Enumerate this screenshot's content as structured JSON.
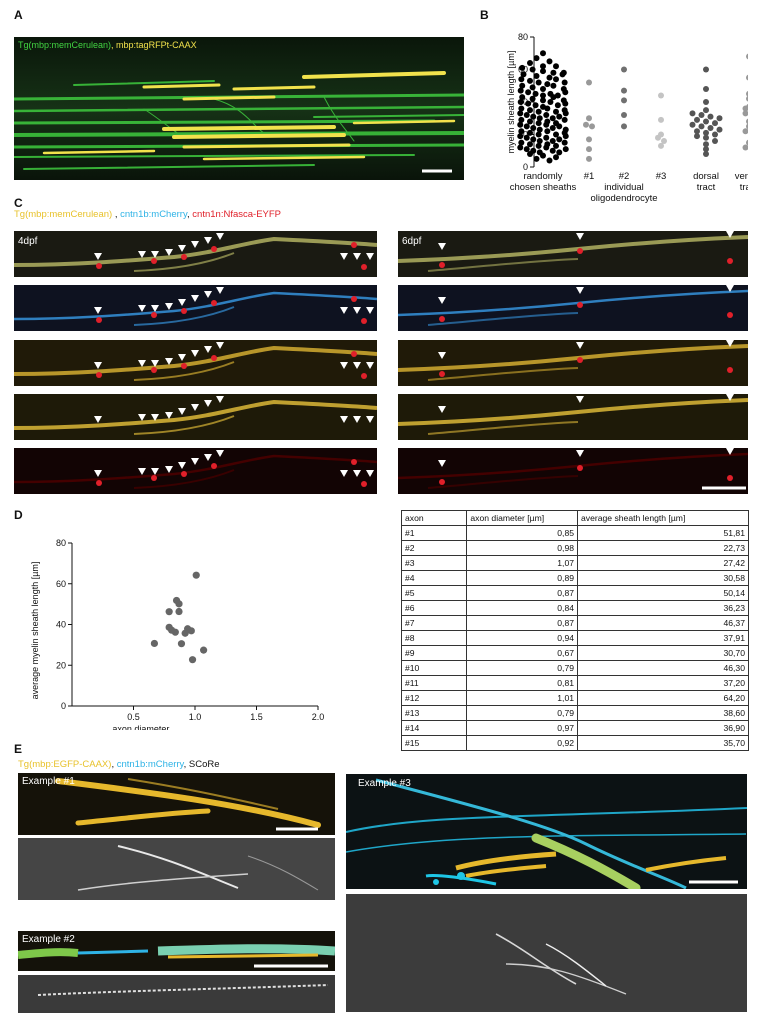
{
  "panel_labels": {
    "a": "A",
    "b": "B",
    "c": "C",
    "d": "D",
    "e": "E"
  },
  "panelA": {
    "caption_green": "Tg(mbp:memCerulean)",
    "caption_sep": ", ",
    "caption_yellow": "mbp:tagRFPt-CAAX"
  },
  "panelC": {
    "caption_yellow": "Tg(mbp:memCerulean)",
    "caption_sep": " , ",
    "caption_cyan": "cntn1b:mCherry",
    "caption_sep2": ", ",
    "caption_red": "cntn1n:Nfasca-EYFP",
    "left_stage": "4dpf",
    "right_stage": "6dpf"
  },
  "panelE": {
    "caption_yellow": "Tg(mbp:EGFP-CAAX)",
    "caption_sep": ", ",
    "caption_cyan": "cntn1b:mCherry",
    "caption_sep2": ", ",
    "caption_gray": "SCoRe",
    "example1": "Example #1",
    "example2": "Example #2",
    "example3": "Example #3"
  },
  "table": {
    "headers": [
      "axon",
      "axon diameter [µm]",
      "average sheath length [µm]"
    ],
    "rows": [
      [
        "#1",
        "0,85",
        "51,81"
      ],
      [
        "#2",
        "0,98",
        "22,73"
      ],
      [
        "#3",
        "1,07",
        "27,42"
      ],
      [
        "#4",
        "0,89",
        "30,58"
      ],
      [
        "#5",
        "0,87",
        "50,14"
      ],
      [
        "#6",
        "0,84",
        "36,23"
      ],
      [
        "#7",
        "0,87",
        "46,37"
      ],
      [
        "#8",
        "0,94",
        "37,91"
      ],
      [
        "#9",
        "0,67",
        "30,70"
      ],
      [
        "#10",
        "0,79",
        "46,30"
      ],
      [
        "#11",
        "0,81",
        "37,20"
      ],
      [
        "#12",
        "1,01",
        "64,20"
      ],
      [
        "#13",
        "0,79",
        "38,60"
      ],
      [
        "#14",
        "0,97",
        "36,90"
      ],
      [
        "#15",
        "0,92",
        "35,70"
      ]
    ]
  },
  "chart_data": [
    {
      "type": "scatter",
      "panel": "B",
      "ylabel": "myelin sheath length [µm]",
      "ylim": [
        0,
        80
      ],
      "yticks": [
        "0",
        "20",
        "40",
        "60",
        "80"
      ],
      "category_labels": [
        [
          "randomly",
          "chosen sheaths"
        ],
        [
          "#1"
        ],
        [
          "#2"
        ],
        [
          "#3"
        ],
        [
          "dorsal",
          "tract"
        ],
        [
          "ventral",
          "tract"
        ]
      ],
      "sublabel": [
        "individual",
        "oligodendrocyte"
      ],
      "colors": {
        "random": "#000000",
        "oligo1": "#999999",
        "oligo2": "#707070",
        "oligo3": "#c4c4c4",
        "dorsal": "#555555",
        "ventral": "#999999"
      },
      "groups": {
        "random": [
          70,
          67,
          65,
          64,
          62,
          61,
          60,
          59,
          58,
          57,
          56,
          55,
          54,
          53,
          52,
          51,
          50,
          49,
          48,
          47,
          46,
          45,
          44,
          43,
          42,
          41,
          40,
          39,
          38,
          37,
          36,
          35,
          34,
          33,
          32,
          31,
          30,
          29,
          28,
          27,
          26,
          25,
          24,
          23,
          22,
          21,
          20,
          19,
          18,
          17,
          16,
          15,
          14,
          13,
          12,
          11,
          10,
          9,
          8,
          7,
          6,
          5,
          4,
          62,
          57,
          54,
          50,
          48,
          45,
          43,
          40,
          38,
          36,
          34,
          32,
          30,
          28,
          26,
          24,
          22,
          20,
          18,
          16,
          14,
          12,
          10,
          44,
          41,
          35,
          31,
          27,
          25,
          21,
          17,
          13,
          9,
          58,
          52,
          46,
          39,
          33,
          29,
          23,
          19,
          15,
          11
        ],
        "oligo1": [
          52,
          30,
          26,
          25,
          17,
          11,
          5
        ],
        "oligo2": [
          60,
          47,
          41,
          32,
          25
        ],
        "oligo3": [
          44,
          29,
          20,
          18,
          16,
          13
        ],
        "dorsal": [
          60,
          48,
          40,
          35,
          33,
          32,
          31,
          30,
          29,
          28,
          27,
          26,
          25,
          24,
          23,
          22,
          21,
          20,
          19,
          18,
          16,
          14,
          11,
          8
        ],
        "ventral": [
          68,
          55,
          45,
          42,
          37,
          36,
          34,
          33,
          30,
          28,
          25,
          22,
          20,
          15,
          12,
          9
        ]
      }
    },
    {
      "type": "scatter",
      "panel": "D",
      "xlabel": "axon diameter",
      "ylabel": "average myelin sheath length [µm]",
      "xlim": [
        0,
        2.0
      ],
      "ylim": [
        0,
        80
      ],
      "xticks": [
        "0.5",
        "1.0",
        "1.5",
        "2.0"
      ],
      "yticks": [
        "0",
        "20",
        "40",
        "60",
        "80"
      ],
      "color": "#666666",
      "x": [
        0.85,
        0.98,
        1.07,
        0.89,
        0.87,
        0.84,
        0.87,
        0.94,
        0.67,
        0.79,
        0.81,
        1.01,
        0.79,
        0.97,
        0.92
      ],
      "y": [
        51.81,
        22.73,
        27.42,
        30.58,
        50.14,
        36.23,
        46.37,
        37.91,
        30.7,
        46.3,
        37.2,
        64.2,
        38.6,
        36.9,
        35.7
      ]
    }
  ]
}
